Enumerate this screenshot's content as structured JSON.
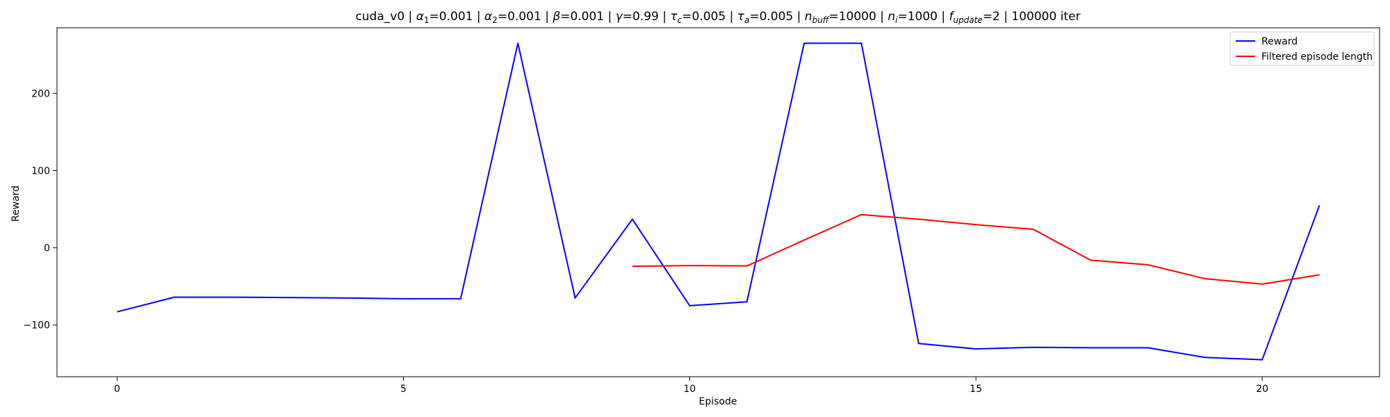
{
  "chart_data": {
    "type": "line",
    "title": {
      "prefix": "cuda_v0 | ",
      "parts": [
        {
          "sym": "α",
          "sub": "1",
          "val": "=0.001"
        },
        {
          "sym": "α",
          "sub": "2",
          "val": "=0.001"
        },
        {
          "sym": "β",
          "sub": "",
          "val": "=0.001"
        },
        {
          "sym": "γ",
          "sub": "",
          "val": "=0.99"
        },
        {
          "sym": "τ",
          "sub": "c",
          "val": "=0.005"
        },
        {
          "sym": "τ",
          "sub": "a",
          "val": "=0.005"
        },
        {
          "sym": "n",
          "sub": "buff",
          "val": "=10000"
        },
        {
          "sym": "n",
          "sub": "i",
          "val": "=1000"
        },
        {
          "sym": "f",
          "sub": "update",
          "val": "=2"
        }
      ],
      "suffix": "100000 iter"
    },
    "xlabel": "Episode",
    "ylabel": "Reward",
    "xlim": [
      -1.05,
      22.05
    ],
    "ylim": [
      -167,
      285
    ],
    "xticks": [
      0,
      5,
      10,
      15,
      20
    ],
    "yticks": [
      -100,
      0,
      100,
      200
    ],
    "grid": false,
    "legend_position": "top-right",
    "series": [
      {
        "name": "Reward",
        "color": "#0000ff",
        "x": [
          0,
          1,
          2,
          3,
          4,
          5,
          6,
          7,
          8,
          9,
          10,
          11,
          12,
          13,
          14,
          15,
          16,
          17,
          18,
          19,
          20,
          21
        ],
        "values": [
          -83,
          -64,
          -64,
          -64.5,
          -65,
          -66,
          -66,
          265,
          -65,
          37,
          -75,
          -70,
          265,
          265,
          -124,
          -131,
          -129,
          -129.5,
          -129.5,
          -142,
          -145,
          55
        ]
      },
      {
        "name": "Filtered episode length",
        "color": "#ff0000",
        "x": [
          9,
          10,
          11,
          12,
          13,
          14,
          15,
          16,
          17,
          18,
          19,
          20,
          21
        ],
        "values": [
          -24,
          -23,
          -23.5,
          10,
          43,
          37,
          30,
          24,
          -16,
          -22,
          -40,
          -47,
          -35
        ]
      }
    ]
  }
}
